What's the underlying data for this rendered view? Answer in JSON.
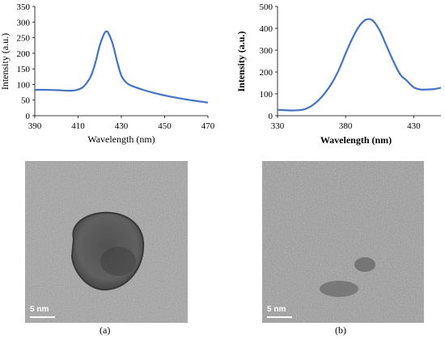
{
  "chart_data": [
    {
      "type": "line",
      "xlabel": "Wavelength (nm)",
      "ylabel": "Intensity (a.u.)",
      "xlim": [
        390,
        470
      ],
      "ylim": [
        0,
        350
      ],
      "xticks": [
        390,
        410,
        430,
        450,
        470
      ],
      "yticks": [
        0,
        50,
        100,
        150,
        200,
        250,
        300,
        350
      ],
      "line_color": "#4472C4",
      "series": [
        {
          "x": [
            390,
            395,
            400,
            403,
            406,
            409,
            412,
            414,
            416,
            418,
            420,
            422,
            423,
            424,
            426,
            428,
            430,
            432,
            434,
            437,
            440,
            445,
            450,
            455,
            460,
            465,
            470
          ],
          "y": [
            83,
            83,
            82,
            81,
            80,
            82,
            90,
            105,
            128,
            170,
            225,
            262,
            270,
            265,
            230,
            175,
            128,
            108,
            98,
            90,
            83,
            73,
            65,
            58,
            52,
            47,
            42
          ]
        }
      ]
    },
    {
      "type": "line",
      "xlabel": "Wavelength (nm)",
      "ylabel": "Intensity (a.u.)",
      "xlim": [
        330,
        450
      ],
      "ylim": [
        0,
        500
      ],
      "xticks": [
        330,
        380,
        430
      ],
      "yticks": [
        0,
        100,
        200,
        300,
        400,
        500
      ],
      "line_color": "#4472C4",
      "series": [
        {
          "x": [
            330,
            340,
            345,
            350,
            355,
            360,
            365,
            370,
            375,
            380,
            385,
            390,
            395,
            400,
            405,
            410,
            415,
            420,
            425,
            430,
            435,
            440,
            445,
            450
          ],
          "y": [
            27,
            24,
            25,
            30,
            45,
            70,
            105,
            150,
            210,
            285,
            355,
            410,
            440,
            435,
            390,
            320,
            250,
            190,
            160,
            130,
            120,
            120,
            122,
            128
          ]
        }
      ]
    }
  ],
  "images": {
    "a": {
      "scale_label": "5 nm",
      "panel_label": "(a)"
    },
    "b": {
      "scale_label": "5 nm",
      "panel_label": "(b)"
    }
  }
}
